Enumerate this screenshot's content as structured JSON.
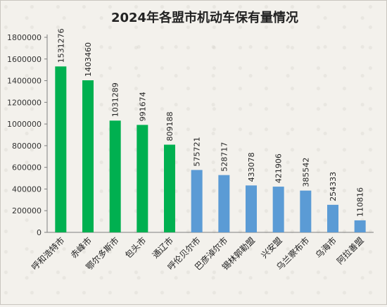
{
  "chart_data": {
    "type": "bar",
    "title": "2024年各盟市机动车保有量情况",
    "xlabel": "",
    "ylabel": "",
    "ylim": [
      0,
      1800000
    ],
    "yticks": [
      0,
      200000,
      400000,
      600000,
      800000,
      1000000,
      1200000,
      1400000,
      1600000,
      1800000
    ],
    "grid": false,
    "legend": "none",
    "categories": [
      "呼和浩特市",
      "赤峰市",
      "鄂尔多斯市",
      "包头市",
      "通辽市",
      "呼伦贝尔市",
      "巴彦淖尔市",
      "锡林郭勒盟",
      "兴安盟",
      "乌兰察布市",
      "乌海市",
      "阿拉善盟"
    ],
    "values": [
      1531276,
      1403460,
      1031289,
      991674,
      809188,
      575721,
      528717,
      433078,
      421906,
      385542,
      254333,
      110816
    ],
    "bar_colors": [
      "#00b050",
      "#00b050",
      "#00b050",
      "#00b050",
      "#00b050",
      "#5b9bd5",
      "#5b9bd5",
      "#5b9bd5",
      "#5b9bd5",
      "#5b9bd5",
      "#5b9bd5",
      "#5b9bd5"
    ]
  }
}
